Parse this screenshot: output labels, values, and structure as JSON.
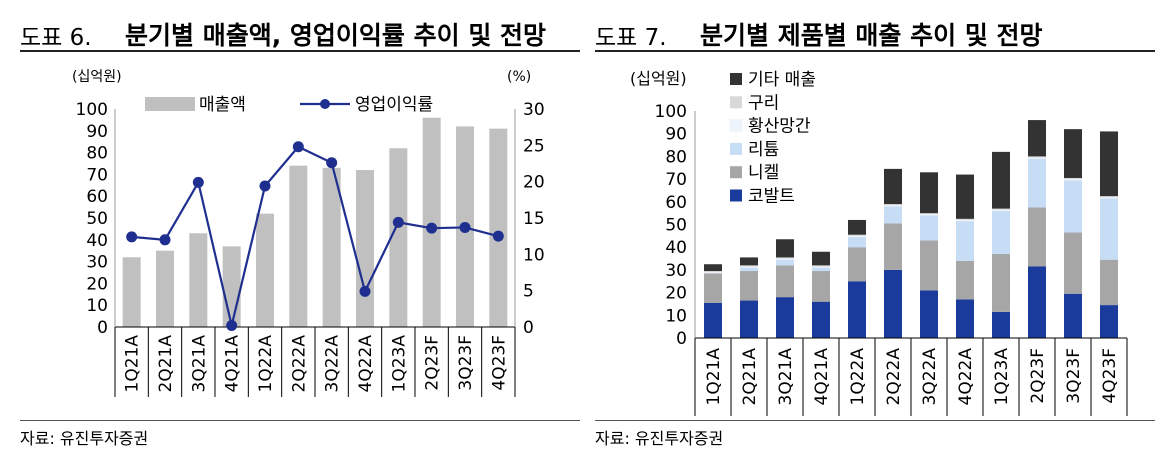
{
  "left": {
    "fig_no": "도표 6.",
    "title": "분기별 매출액, 영업이익률 추이 및 전망",
    "source": "자료: 유진투자증권",
    "chart_data": {
      "type": "bar+line",
      "categories": [
        "1Q21A",
        "2Q21A",
        "3Q21A",
        "4Q21A",
        "1Q22A",
        "2Q22A",
        "3Q22A",
        "4Q22A",
        "1Q23A",
        "2Q23F",
        "3Q23F",
        "4Q23F"
      ],
      "series": [
        {
          "name": "매출액",
          "kind": "bar",
          "axis": "left",
          "color": "#c0c0c0",
          "values": [
            32,
            35,
            43,
            37,
            52,
            74,
            73,
            72,
            82,
            96,
            92,
            91
          ]
        },
        {
          "name": "영업이익률",
          "kind": "line",
          "axis": "right",
          "color": "#1f2f8f",
          "values": [
            12.4,
            12.0,
            19.9,
            0.2,
            19.4,
            24.8,
            22.6,
            4.9,
            14.4,
            13.6,
            13.7,
            12.5
          ]
        }
      ],
      "y_left_label": "(십억원)",
      "y_right_label": "(%)",
      "ylim_left": [
        0,
        100
      ],
      "ylim_right": [
        0,
        30
      ],
      "yticks_left": [
        0,
        10,
        20,
        30,
        40,
        50,
        60,
        70,
        80,
        90,
        100
      ],
      "yticks_right": [
        0,
        5,
        10,
        15,
        20,
        25,
        30
      ],
      "legend_position": "top"
    }
  },
  "right": {
    "fig_no": "도표 7.",
    "title": "분기별 제품별 매출 추이 및 전망",
    "source": "자료: 유진투자증권",
    "chart_data": {
      "type": "stacked-bar",
      "categories": [
        "1Q21A",
        "2Q21A",
        "3Q21A",
        "4Q21A",
        "1Q22A",
        "2Q22A",
        "3Q22A",
        "4Q22A",
        "1Q23A",
        "2Q23F",
        "3Q23F",
        "4Q23F"
      ],
      "series": [
        {
          "name": "코발트",
          "color": "#1a3a9c",
          "values": [
            15.5,
            16.5,
            18,
            16,
            25,
            30,
            21,
            17,
            11.5,
            31.5,
            19.5,
            14.5
          ]
        },
        {
          "name": "니켈",
          "color": "#a6a6a6",
          "values": [
            13,
            13,
            14,
            13.5,
            15,
            20.5,
            22,
            17,
            25.5,
            26,
            27,
            20
          ]
        },
        {
          "name": "리튬",
          "color": "#c7dcf5",
          "values": [
            0,
            1.5,
            2.5,
            1.5,
            4.5,
            7.5,
            11,
            17.5,
            19,
            21.5,
            23,
            27
          ]
        },
        {
          "name": "황산망간",
          "color": "#eef4fc",
          "values": [
            0.5,
            0.5,
            0.5,
            0.5,
            0.5,
            0.5,
            0.5,
            0.5,
            0.5,
            0.5,
            0.5,
            0.5
          ]
        },
        {
          "name": "구리",
          "color": "#d9d9d9",
          "values": [
            0.5,
            0.5,
            0.5,
            0.5,
            0.5,
            0.5,
            0.5,
            0.5,
            0.5,
            0.5,
            0.5,
            0.5
          ]
        },
        {
          "name": "기타 매출",
          "color": "#333333",
          "values": [
            3,
            3.5,
            8,
            6,
            6.5,
            15.5,
            18,
            19.5,
            25,
            16,
            21.5,
            28.5
          ]
        }
      ],
      "y_label": "(십억원)",
      "ylim": [
        0,
        100
      ],
      "yticks": [
        0,
        10,
        20,
        30,
        40,
        50,
        60,
        70,
        80,
        90,
        100
      ],
      "legend_position": "top-left"
    }
  }
}
